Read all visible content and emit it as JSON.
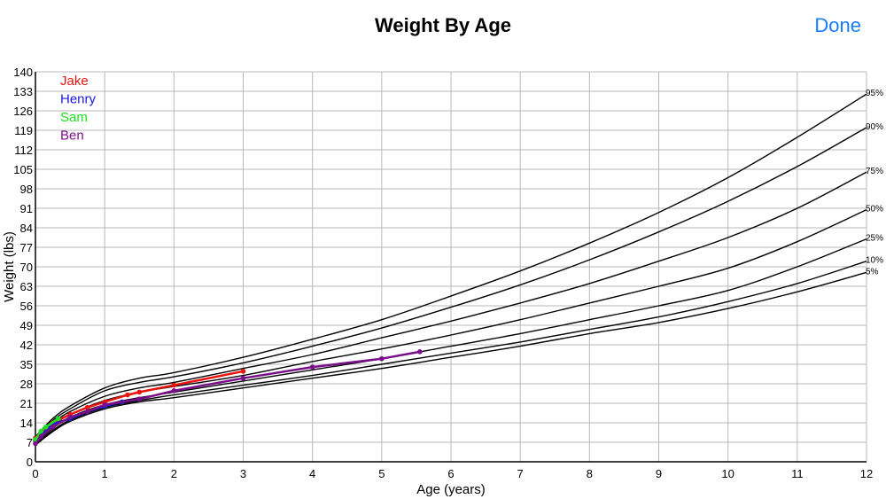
{
  "header": {
    "title": "Weight By Age",
    "done_label": "Done"
  },
  "chart_data": {
    "type": "line",
    "title": "Weight By Age",
    "xlabel": "Age (years)",
    "ylabel": "Weight (lbs)",
    "xlim": [
      0,
      12
    ],
    "ylim": [
      0,
      140
    ],
    "xticks": [
      "0",
      "1",
      "2",
      "3",
      "4",
      "5",
      "6",
      "7",
      "8",
      "9",
      "10",
      "11",
      "12"
    ],
    "yticks": [
      "0",
      "7",
      "14",
      "21",
      "28",
      "35",
      "42",
      "49",
      "56",
      "63",
      "70",
      "77",
      "84",
      "91",
      "98",
      "105",
      "112",
      "119",
      "126",
      "133",
      "140"
    ],
    "grid": true,
    "legend_position": "top-left",
    "percentile_color": "#000000",
    "percentiles": [
      {
        "label": "95%",
        "points": [
          [
            0,
            9
          ],
          [
            0.25,
            15.5
          ],
          [
            0.5,
            20
          ],
          [
            1,
            26.5
          ],
          [
            1.5,
            30
          ],
          [
            2,
            32
          ],
          [
            3,
            37.5
          ],
          [
            4,
            44
          ],
          [
            5,
            51
          ],
          [
            6,
            59.5
          ],
          [
            7,
            68.5
          ],
          [
            8,
            78.5
          ],
          [
            9,
            89.5
          ],
          [
            10,
            102
          ],
          [
            11,
            116.5
          ],
          [
            12,
            132
          ]
        ]
      },
      {
        "label": "90%",
        "points": [
          [
            0,
            8.6
          ],
          [
            0.25,
            14.8
          ],
          [
            0.5,
            19
          ],
          [
            1,
            25.5
          ],
          [
            1.5,
            28.5
          ],
          [
            2,
            30.5
          ],
          [
            3,
            35.5
          ],
          [
            4,
            41.5
          ],
          [
            5,
            48
          ],
          [
            6,
            55.5
          ],
          [
            7,
            63.5
          ],
          [
            8,
            72.5
          ],
          [
            9,
            82.5
          ],
          [
            10,
            93.5
          ],
          [
            11,
            106
          ],
          [
            12,
            120
          ]
        ]
      },
      {
        "label": "75%",
        "points": [
          [
            0,
            8
          ],
          [
            0.25,
            13.8
          ],
          [
            0.5,
            18
          ],
          [
            1,
            23.5
          ],
          [
            1.5,
            26.5
          ],
          [
            2,
            28.5
          ],
          [
            3,
            33.5
          ],
          [
            4,
            38.5
          ],
          [
            5,
            44.5
          ],
          [
            6,
            50.5
          ],
          [
            7,
            57
          ],
          [
            8,
            64
          ],
          [
            9,
            72
          ],
          [
            10,
            80.5
          ],
          [
            11,
            91
          ],
          [
            12,
            104
          ]
        ]
      },
      {
        "label": "50%",
        "points": [
          [
            0,
            7.5
          ],
          [
            0.25,
            13
          ],
          [
            0.5,
            17
          ],
          [
            1,
            22
          ],
          [
            1.5,
            25
          ],
          [
            2,
            27
          ],
          [
            3,
            31
          ],
          [
            4,
            36
          ],
          [
            5,
            40.5
          ],
          [
            6,
            45.5
          ],
          [
            7,
            51
          ],
          [
            8,
            57
          ],
          [
            9,
            63
          ],
          [
            10,
            69.5
          ],
          [
            11,
            79
          ],
          [
            12,
            90.5
          ]
        ]
      },
      {
        "label": "25%",
        "points": [
          [
            0,
            6.9
          ],
          [
            0.25,
            12
          ],
          [
            0.5,
            16
          ],
          [
            1,
            20.5
          ],
          [
            1.5,
            23
          ],
          [
            2,
            25
          ],
          [
            3,
            29
          ],
          [
            4,
            33
          ],
          [
            5,
            37
          ],
          [
            6,
            41.5
          ],
          [
            7,
            46
          ],
          [
            8,
            51
          ],
          [
            9,
            56
          ],
          [
            10,
            61.5
          ],
          [
            11,
            70
          ],
          [
            12,
            80
          ]
        ]
      },
      {
        "label": "10%",
        "points": [
          [
            0,
            6.4
          ],
          [
            0.25,
            11.3
          ],
          [
            0.5,
            15
          ],
          [
            1,
            19.5
          ],
          [
            1.5,
            22
          ],
          [
            2,
            24
          ],
          [
            3,
            27.5
          ],
          [
            4,
            31
          ],
          [
            5,
            35
          ],
          [
            6,
            39
          ],
          [
            7,
            43
          ],
          [
            8,
            47.5
          ],
          [
            9,
            52
          ],
          [
            10,
            57.5
          ],
          [
            11,
            64
          ],
          [
            12,
            72
          ]
        ]
      },
      {
        "label": "5%",
        "points": [
          [
            0,
            6
          ],
          [
            0.25,
            10.8
          ],
          [
            0.5,
            14.5
          ],
          [
            1,
            19
          ],
          [
            1.5,
            21.5
          ],
          [
            2,
            23
          ],
          [
            3,
            26.5
          ],
          [
            4,
            30
          ],
          [
            5,
            33.5
          ],
          [
            6,
            37.5
          ],
          [
            7,
            41.5
          ],
          [
            8,
            46
          ],
          [
            9,
            50
          ],
          [
            10,
            55
          ],
          [
            11,
            61
          ],
          [
            12,
            68
          ]
        ]
      }
    ],
    "series": [
      {
        "name": "Jake",
        "color": "#e8150f",
        "points": [
          [
            0,
            8.5
          ],
          [
            0.08,
            10.5
          ],
          [
            0.25,
            14
          ],
          [
            0.5,
            17
          ],
          [
            0.75,
            19.5
          ],
          [
            1,
            21.5
          ],
          [
            1.33,
            24
          ],
          [
            1.5,
            25
          ],
          [
            2,
            27.5
          ],
          [
            3,
            32.5
          ]
        ]
      },
      {
        "name": "Henry",
        "color": "#1a1ae0",
        "points": [
          [
            0,
            7.5
          ],
          [
            0.1,
            10
          ],
          [
            0.25,
            13.5
          ],
          [
            0.5,
            15.5
          ],
          [
            0.75,
            18
          ],
          [
            1,
            20
          ],
          [
            1.25,
            21.5
          ],
          [
            1.5,
            22.5
          ]
        ]
      },
      {
        "name": "Sam",
        "color": "#1fe01f",
        "points": [
          [
            0,
            8
          ],
          [
            0.08,
            11
          ],
          [
            0.15,
            12.5
          ],
          [
            0.33,
            15.5
          ]
        ]
      },
      {
        "name": "Ben",
        "color": "#7a0f8a",
        "points": [
          [
            0,
            6.5
          ],
          [
            0.08,
            9
          ],
          [
            0.25,
            12.5
          ],
          [
            0.5,
            16
          ],
          [
            0.75,
            18
          ],
          [
            1,
            20.5
          ],
          [
            1.5,
            22.5
          ],
          [
            2,
            25.5
          ],
          [
            3,
            30
          ],
          [
            4,
            34
          ],
          [
            5,
            37
          ],
          [
            5.55,
            39.5
          ]
        ]
      }
    ]
  }
}
